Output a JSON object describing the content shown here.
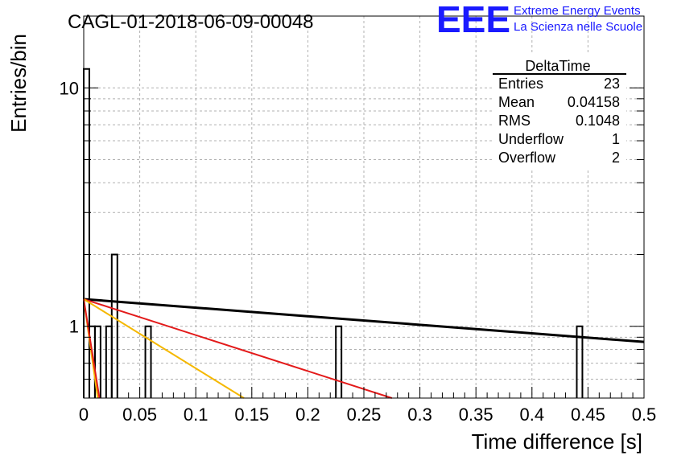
{
  "header": {
    "title": "CAGL-01-2018-06-09-00048",
    "logo_text": "EEE",
    "logo_line1": "Extreme Energy Events",
    "logo_line2": "La Scienza nelle Scuole",
    "logo_color": "#1a1aff"
  },
  "stats_box": {
    "title": "DeltaTime",
    "rows": [
      {
        "label": "Entries",
        "value": "23"
      },
      {
        "label": "Mean",
        "value": "0.04158"
      },
      {
        "label": "RMS",
        "value": "0.1048"
      },
      {
        "label": "Underflow",
        "value": "1"
      },
      {
        "label": "Overflow",
        "value": "2"
      }
    ]
  },
  "chart_data": {
    "type": "histogram",
    "xlabel": "Time difference [s]",
    "ylabel": "Entries/bin",
    "xlim": [
      0,
      0.5
    ],
    "ylim": [
      0.5,
      20
    ],
    "yscale": "log",
    "grid": true,
    "x_ticks": [
      "0",
      "0.05",
      "0.1",
      "0.15",
      "0.2",
      "0.25",
      "0.3",
      "0.35",
      "0.4",
      "0.45",
      "0.5"
    ],
    "y_ticks": [
      "1",
      "10"
    ],
    "bins": [
      {
        "x0": 0.0,
        "x1": 0.005,
        "count": 12
      },
      {
        "x0": 0.005,
        "x1": 0.01,
        "count": 1
      },
      {
        "x0": 0.01,
        "x1": 0.015,
        "count": 1
      },
      {
        "x0": 0.02,
        "x1": 0.025,
        "count": 1
      },
      {
        "x0": 0.025,
        "x1": 0.03,
        "count": 2
      },
      {
        "x0": 0.055,
        "x1": 0.06,
        "count": 1
      },
      {
        "x0": 0.225,
        "x1": 0.23,
        "count": 1
      },
      {
        "x0": 0.44,
        "x1": 0.445,
        "count": 1
      }
    ],
    "fits": [
      {
        "color": "#000000",
        "points": [
          [
            0.0,
            1.3
          ],
          [
            0.5,
            0.86
          ]
        ]
      },
      {
        "color": "#e31a1a",
        "points": [
          [
            0.0,
            1.3
          ],
          [
            0.275,
            0.5
          ]
        ]
      },
      {
        "color": "#f5b800",
        "points": [
          [
            0.0,
            1.3
          ],
          [
            0.143,
            0.5
          ]
        ]
      },
      {
        "color": "#f5b800",
        "points": [
          [
            0.0,
            1.3
          ],
          [
            0.0125,
            0.5
          ]
        ]
      },
      {
        "color": "#e31a1a",
        "points": [
          [
            0.0,
            1.3
          ],
          [
            0.014,
            0.5
          ]
        ]
      }
    ]
  }
}
